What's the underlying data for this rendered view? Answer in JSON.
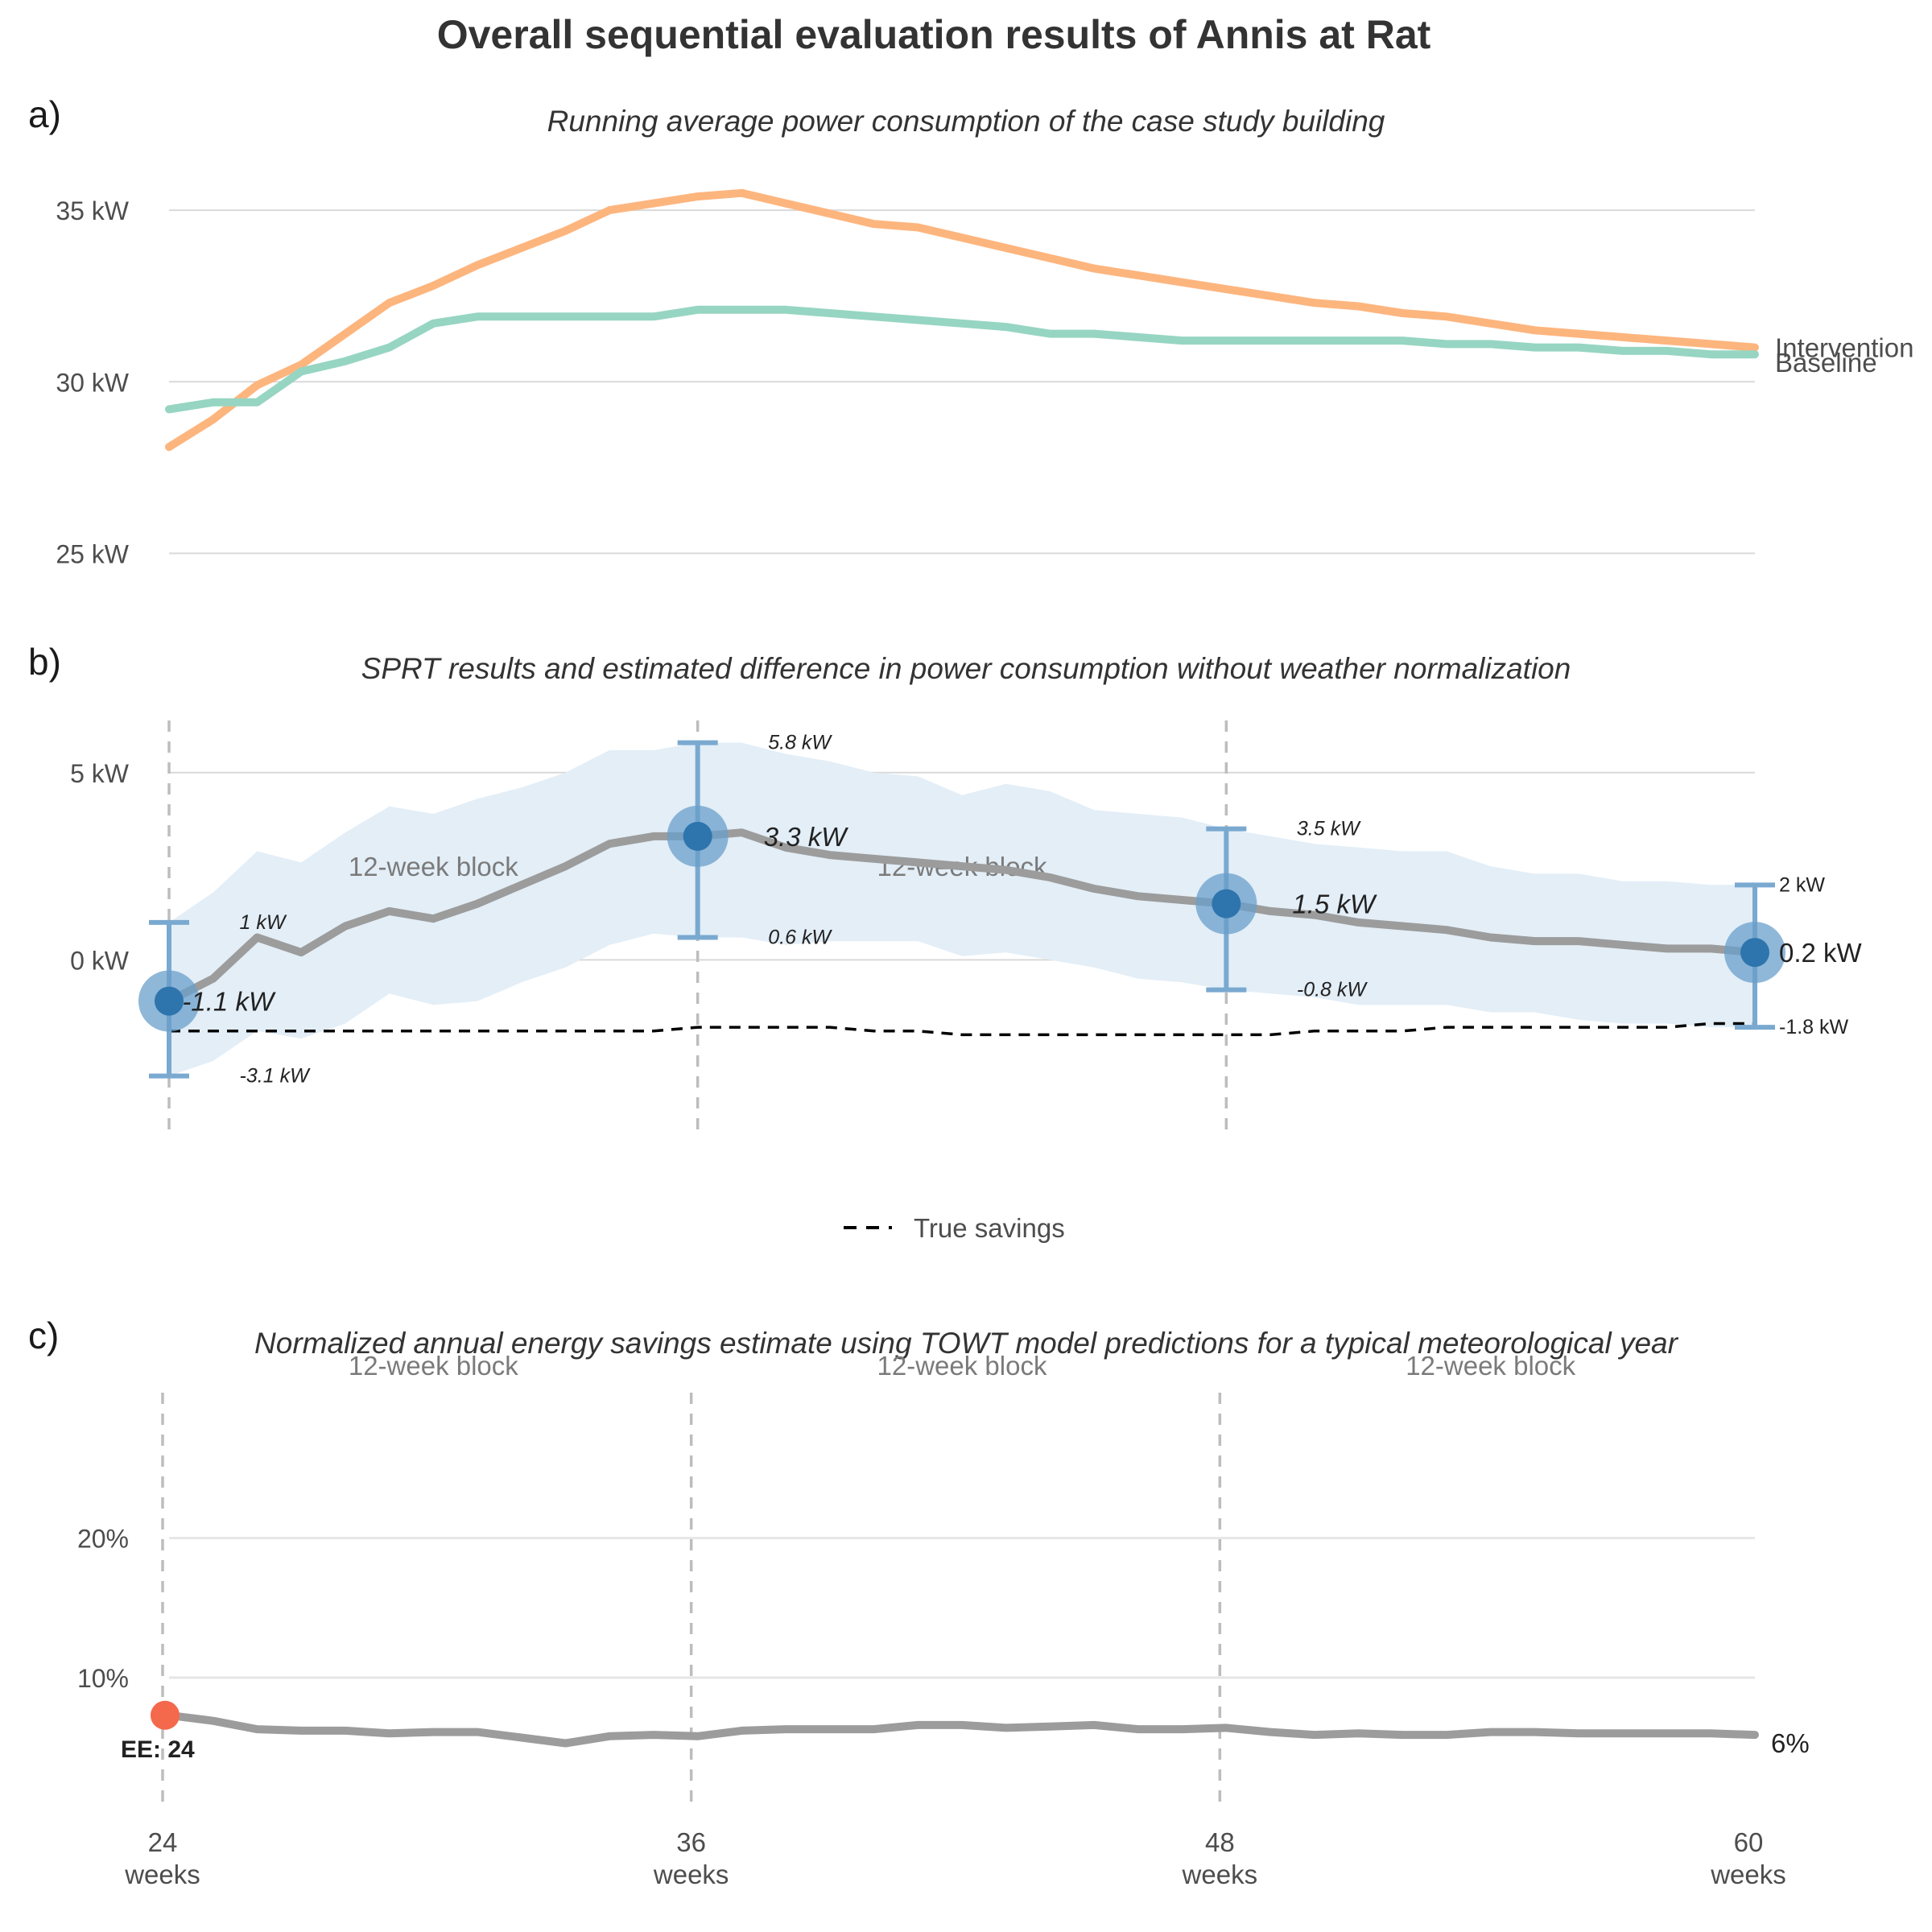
{
  "title": "Overall sequential evaluation results of Annis at Rat",
  "x_ticks": [
    {
      "value": 24,
      "num": "24",
      "unit": "weeks"
    },
    {
      "value": 36,
      "num": "36",
      "unit": "weeks"
    },
    {
      "value": 48,
      "num": "48",
      "unit": "weeks"
    },
    {
      "value": 60,
      "num": "60",
      "unit": "weeks"
    }
  ],
  "block_label": "12-week block",
  "colors": {
    "intervention": "#fdb57e",
    "baseline": "#96d5c2",
    "estimate": "#9c9c9c",
    "ci_band": "#e3eef7",
    "point": "#2e75ae",
    "point_halo": "#6a9fcb",
    "errorbar": "#7aa9d0",
    "ee_point": "#f4684c",
    "grid": "#d9d9d9",
    "vline": "#bdbdbd"
  },
  "chart_data": [
    {
      "panel": "a)",
      "type": "line",
      "title": "Running average power consumption of the case study building",
      "ylim": [
        24,
        36.2
      ],
      "y_ticks": [
        {
          "value": 25,
          "label": "25 kW"
        },
        {
          "value": 30,
          "label": "30 kW"
        },
        {
          "value": 35,
          "label": "35 kW"
        }
      ],
      "x": [
        24,
        25,
        26,
        27,
        28,
        29,
        30,
        31,
        32,
        33,
        34,
        35,
        36,
        37,
        38,
        39,
        40,
        41,
        42,
        43,
        44,
        45,
        46,
        47,
        48,
        49,
        50,
        51,
        52,
        53,
        54,
        55,
        56,
        57,
        58,
        59,
        60
      ],
      "series": [
        {
          "name": "Intervention",
          "values": [
            28.1,
            28.9,
            29.9,
            30.5,
            31.4,
            32.3,
            32.8,
            33.4,
            33.9,
            34.4,
            35.0,
            35.2,
            35.4,
            35.5,
            35.2,
            34.9,
            34.6,
            34.5,
            34.2,
            33.9,
            33.6,
            33.3,
            33.1,
            32.9,
            32.7,
            32.5,
            32.3,
            32.2,
            32.0,
            31.9,
            31.7,
            31.5,
            31.4,
            31.3,
            31.2,
            31.1,
            31.0
          ]
        },
        {
          "name": "Baseline",
          "values": [
            29.2,
            29.4,
            29.4,
            30.3,
            30.6,
            31.0,
            31.7,
            31.9,
            31.9,
            31.9,
            31.9,
            31.9,
            32.1,
            32.1,
            32.1,
            32.0,
            31.9,
            31.8,
            31.7,
            31.6,
            31.4,
            31.4,
            31.3,
            31.2,
            31.2,
            31.2,
            31.2,
            31.2,
            31.2,
            31.1,
            31.1,
            31.0,
            31.0,
            30.9,
            30.9,
            30.8,
            30.8
          ]
        }
      ]
    },
    {
      "panel": "b)",
      "type": "line",
      "title": "SPRT results and estimated difference in power consumption without weather normalization",
      "ylim": [
        -5,
        6.5
      ],
      "y_ticks": [
        {
          "value": 0,
          "label": "0 kW"
        },
        {
          "value": 5,
          "label": "5 kW"
        }
      ],
      "x": [
        24,
        25,
        26,
        27,
        28,
        29,
        30,
        31,
        32,
        33,
        34,
        35,
        36,
        37,
        38,
        39,
        40,
        41,
        42,
        43,
        44,
        45,
        46,
        47,
        48,
        49,
        50,
        51,
        52,
        53,
        54,
        55,
        56,
        57,
        58,
        59,
        60
      ],
      "estimate": [
        -1.1,
        -0.5,
        0.6,
        0.2,
        0.9,
        1.3,
        1.1,
        1.5,
        2.0,
        2.5,
        3.1,
        3.3,
        3.3,
        3.4,
        3.0,
        2.8,
        2.7,
        2.6,
        2.5,
        2.4,
        2.2,
        1.9,
        1.7,
        1.6,
        1.5,
        1.3,
        1.2,
        1.0,
        0.9,
        0.8,
        0.6,
        0.5,
        0.5,
        0.4,
        0.3,
        0.3,
        0.2
      ],
      "ci_upper": [
        1.0,
        1.8,
        2.9,
        2.6,
        3.4,
        4.1,
        3.9,
        4.3,
        4.6,
        5.0,
        5.6,
        5.6,
        5.8,
        5.8,
        5.5,
        5.3,
        5.0,
        4.9,
        4.4,
        4.7,
        4.5,
        4.0,
        3.9,
        3.8,
        3.5,
        3.3,
        3.1,
        3.0,
        2.9,
        2.9,
        2.5,
        2.3,
        2.3,
        2.1,
        2.1,
        2.0,
        2.0
      ],
      "ci_lower": [
        -3.1,
        -2.7,
        -1.9,
        -2.1,
        -1.7,
        -0.9,
        -1.2,
        -1.1,
        -0.6,
        -0.2,
        0.4,
        0.7,
        0.6,
        0.6,
        0.4,
        0.5,
        0.5,
        0.5,
        0.1,
        0.2,
        0.0,
        -0.2,
        -0.5,
        -0.6,
        -0.8,
        -0.9,
        -1.0,
        -1.2,
        -1.2,
        -1.2,
        -1.4,
        -1.4,
        -1.6,
        -1.7,
        -1.7,
        -1.8,
        -1.8
      ],
      "true_savings": [
        -1.9,
        -1.9,
        -1.9,
        -1.9,
        -1.9,
        -1.9,
        -1.9,
        -1.9,
        -1.9,
        -1.9,
        -1.9,
        -1.9,
        -1.8,
        -1.8,
        -1.8,
        -1.8,
        -1.9,
        -1.9,
        -2.0,
        -2.0,
        -2.0,
        -2.0,
        -2.0,
        -2.0,
        -2.0,
        -2.0,
        -1.9,
        -1.9,
        -1.9,
        -1.8,
        -1.8,
        -1.8,
        -1.8,
        -1.8,
        -1.8,
        -1.7,
        -1.7
      ],
      "checkpoints": [
        {
          "x": 24,
          "estimate": -1.1,
          "upper": 1.0,
          "lower": -3.1,
          "estimate_label": "-1.1 kW",
          "upper_label": "1 kW",
          "lower_label": "-3.1 kW"
        },
        {
          "x": 36,
          "estimate": 3.3,
          "upper": 5.8,
          "lower": 0.6,
          "estimate_label": "3.3 kW",
          "upper_label": "5.8 kW",
          "lower_label": "0.6 kW"
        },
        {
          "x": 48,
          "estimate": 1.5,
          "upper": 3.5,
          "lower": -0.8,
          "estimate_label": "1.5 kW",
          "upper_label": "3.5 kW",
          "lower_label": "-0.8 kW"
        },
        {
          "x": 60,
          "estimate": 0.2,
          "upper": 2.0,
          "lower": -1.8,
          "estimate_label": "0.2 kW",
          "upper_label": "2 kW",
          "lower_label": "-1.8 kW"
        }
      ],
      "legend": {
        "label": "True savings",
        "placement": "bottom"
      }
    },
    {
      "panel": "c)",
      "type": "line",
      "title": "Normalized annual energy savings estimate using TOWT model predictions for a typical meteorological year",
      "ylim": [
        1,
        31
      ],
      "y_ticks": [
        {
          "value": 10,
          "label": "10%"
        },
        {
          "value": 20,
          "label": "20%"
        }
      ],
      "x": [
        24,
        25,
        26,
        27,
        28,
        29,
        30,
        31,
        32,
        33,
        34,
        35,
        36,
        37,
        38,
        39,
        40,
        41,
        42,
        43,
        44,
        45,
        46,
        47,
        48,
        49,
        50,
        51,
        52,
        53,
        54,
        55,
        56,
        57,
        58,
        59,
        60
      ],
      "values": [
        7.3,
        6.9,
        6.3,
        6.2,
        6.2,
        6.0,
        6.1,
        6.1,
        5.7,
        5.3,
        5.8,
        5.9,
        5.8,
        6.2,
        6.3,
        6.3,
        6.3,
        6.6,
        6.6,
        6.4,
        6.5,
        6.6,
        6.3,
        6.3,
        6.4,
        6.1,
        5.9,
        6.0,
        5.9,
        5.9,
        6.1,
        6.1,
        6.0,
        6.0,
        6.0,
        6.0,
        5.9
      ],
      "end_label": "6%",
      "ee_point": {
        "x": 24,
        "value": 7.3,
        "label": "EE: 24"
      }
    }
  ]
}
